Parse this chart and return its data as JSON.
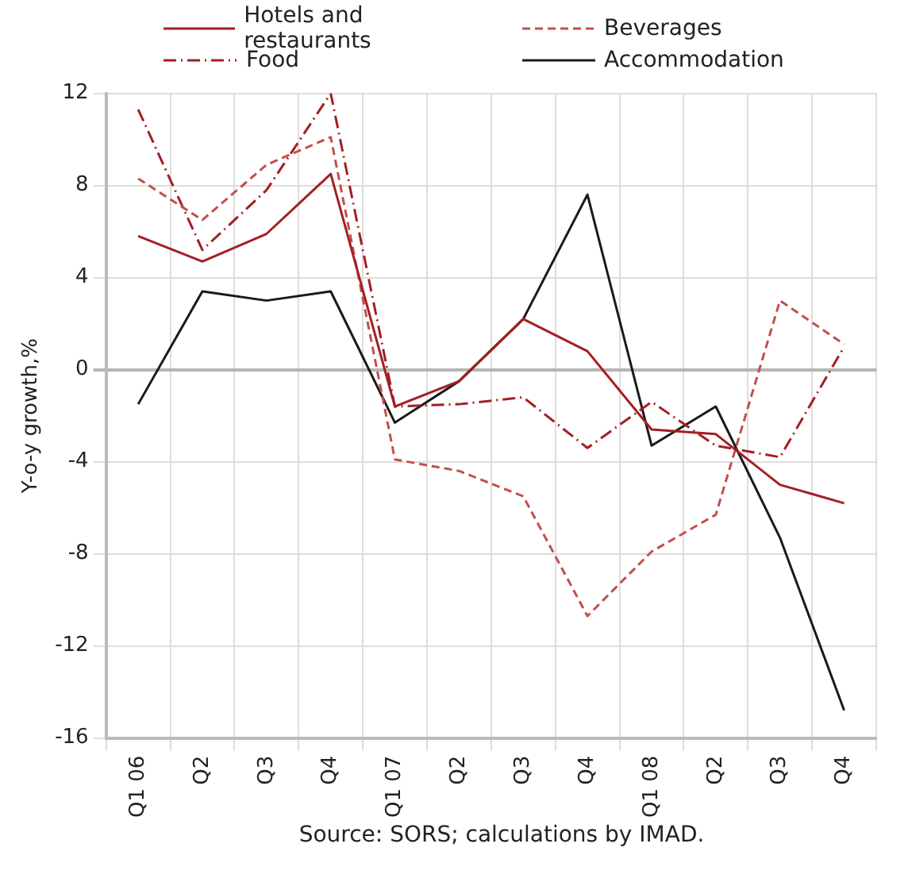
{
  "chart_data": {
    "type": "line",
    "ylabel": "Y-o-y growth,%",
    "categories": [
      "Q1 06",
      "Q2",
      "Q3",
      "Q4",
      "Q1 07",
      "Q2",
      "Q3",
      "Q4",
      "Q1 08",
      "Q2",
      "Q3",
      "Q4"
    ],
    "ylim": [
      -16,
      12
    ],
    "yticks": [
      -16,
      -12,
      -8,
      -4,
      0,
      4,
      8,
      12
    ],
    "grid": true,
    "legend": "top",
    "marker": "none",
    "series": [
      {
        "name": "Hotels and restaurants",
        "color": "#a31f24",
        "line_style": "solid",
        "values": [
          5.8,
          4.7,
          5.9,
          8.5,
          -1.6,
          -0.5,
          2.2,
          0.8,
          -2.6,
          -2.8,
          -5.0,
          -5.8
        ]
      },
      {
        "name": "Beverages",
        "color": "#c0504d",
        "line_style": "dashed",
        "values": [
          8.3,
          6.5,
          8.9,
          10.1,
          -3.9,
          -4.4,
          -5.5,
          -10.7,
          -7.9,
          -6.3,
          3.0,
          1.1
        ]
      },
      {
        "name": "Food",
        "color": "#a31f24",
        "line_style": "dashdot",
        "values": [
          11.3,
          5.2,
          7.8,
          12.0,
          -1.6,
          -1.5,
          -1.2,
          -3.4,
          -1.4,
          -3.3,
          -3.8,
          1.0
        ]
      },
      {
        "name": "Accommodation",
        "color": "#1a1a1a",
        "line_style": "solid",
        "values": [
          -1.5,
          3.4,
          3.0,
          3.4,
          -2.3,
          -0.5,
          2.2,
          7.6,
          -3.3,
          -1.6,
          -7.3,
          -14.8
        ]
      }
    ],
    "annotations": [
      "Source: SORS; calculations by IMAD."
    ]
  }
}
